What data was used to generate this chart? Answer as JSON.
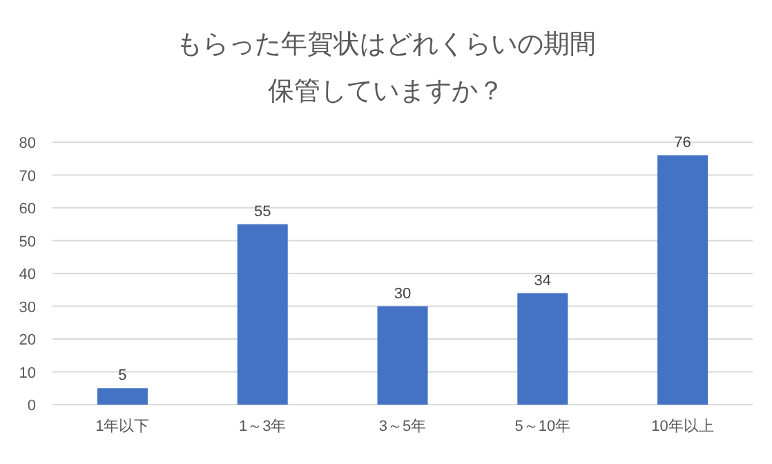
{
  "chart_data": {
    "type": "bar",
    "title": "もらった年賀状はどれくらいの期間保管していますか？",
    "categories": [
      "1年以下",
      "1～3年",
      "3～5年",
      "5～10年",
      "10年以上"
    ],
    "values": [
      5,
      55,
      30,
      34,
      76
    ],
    "color": "#4472c4",
    "ylim": [
      0,
      80
    ],
    "yticks": [
      0,
      10,
      20,
      30,
      40,
      50,
      60,
      70,
      80
    ],
    "grid": "y",
    "data_labels": true
  }
}
